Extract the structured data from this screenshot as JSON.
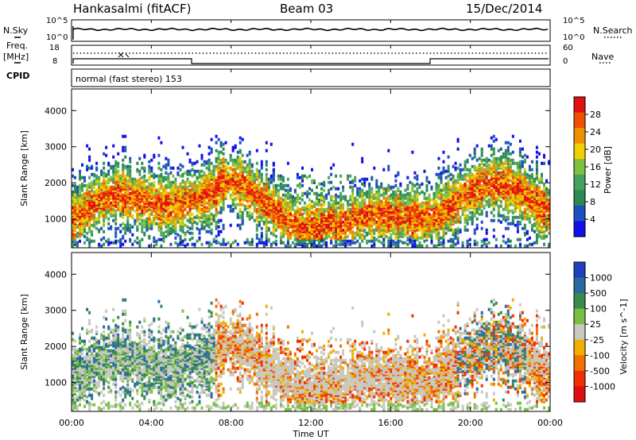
{
  "header": {
    "station": "Hankasalmi (fitACF)",
    "beam": "Beam 03",
    "date": "15/Dec/2014"
  },
  "left_labels": {
    "nsky": "N.Sky",
    "freq": "Freq.",
    "freq_unit": "[MHz]",
    "cpid": "CPID"
  },
  "right_labels": {
    "nsearch": "N.Search",
    "nave": "Nave"
  },
  "cpid_text": "normal (fast stereo) 153",
  "xaxis_label": "Time UT",
  "colors": {
    "power": [
      "#1010e8",
      "#2050c0",
      "#2a8a50",
      "#48a060",
      "#7fc040",
      "#f0d000",
      "#f09000",
      "#f05000",
      "#e01010"
    ],
    "velocity": [
      "#2040c0",
      "#2a6aa0",
      "#3a8a50",
      "#7ac040",
      "#c8c8c0",
      "#f0b000",
      "#f07000",
      "#f03000",
      "#e01010"
    ]
  },
  "chart_data": [
    {
      "type": "line",
      "name": "noise",
      "left_ticks": [
        "10^5",
        "10^0"
      ],
      "right_ticks": [
        "10^5",
        "10^0"
      ],
      "series": [
        {
          "name": "N.Sky"
        },
        {
          "name": "N.Search"
        }
      ]
    },
    {
      "type": "line",
      "name": "frequency-nave",
      "left_ticks": [
        "18",
        "8"
      ],
      "right_ticks": [
        "60",
        "0"
      ],
      "series": [
        {
          "name": "Freq."
        },
        {
          "name": "Nave"
        }
      ]
    },
    {
      "type": "heatmap",
      "name": "power",
      "ylabel": "Slant Range [km]",
      "yticks": [
        "1000",
        "2000",
        "3000",
        "4000"
      ],
      "ylim": [
        200,
        4600
      ],
      "x": [
        "00:00",
        "04:00",
        "08:00",
        "12:00",
        "16:00",
        "20:00",
        "00:00"
      ],
      "colorbar": {
        "label": "Power [dB]",
        "ticks": [
          "4",
          "8",
          "12",
          "16",
          "20",
          "24",
          "28"
        ]
      }
    },
    {
      "type": "heatmap",
      "name": "velocity",
      "ylabel": "Slant Range [km]",
      "yticks": [
        "1000",
        "2000",
        "3000",
        "4000"
      ],
      "ylim": [
        200,
        4600
      ],
      "x": [
        "00:00",
        "04:00",
        "08:00",
        "12:00",
        "16:00",
        "20:00",
        "00:00"
      ],
      "colorbar": {
        "label": "Velocity [m s^-1]",
        "ticks": [
          "1000",
          "500",
          "100",
          "25",
          "-25",
          "-100",
          "-500",
          "-1000"
        ]
      }
    }
  ]
}
